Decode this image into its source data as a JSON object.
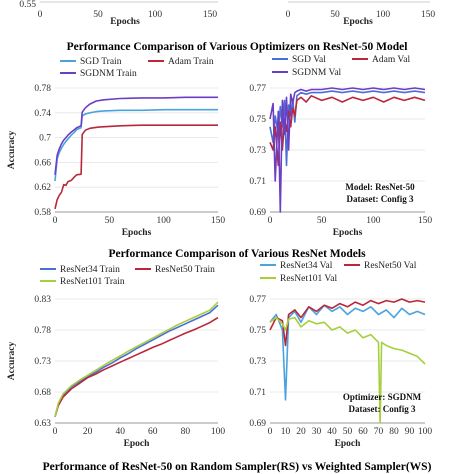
{
  "sections": {
    "s1": "Performance Comparison of Various Optimizers on ResNet-50 Model",
    "s2": "Performance Comparison of Various ResNet Models",
    "s3": "Performance of ResNet-50 on Random Sampler(RS) vs Weighted Sampler(WS)"
  },
  "colors": {
    "blue": "#4a6fd8",
    "red": "#b8283c",
    "purple": "#6b3fc4",
    "green": "#a6cf3f",
    "cyan": "#4aa3df"
  },
  "chart_data": [
    {
      "id": "top_partial",
      "type": "line",
      "x_tick_labels": [
        "0",
        "50",
        "100",
        "150"
      ],
      "y_tick_labels": [
        "0.55"
      ],
      "xlabel": "Epochs",
      "ylim": [
        0.55,
        0.6
      ],
      "xlim": [
        0,
        150
      ],
      "series": []
    },
    {
      "id": "top_partial_right",
      "type": "line",
      "x_tick_labels": [
        "0",
        "50",
        "100",
        "150"
      ],
      "xlabel": "Epochs",
      "xlim": [
        0,
        150
      ],
      "series": []
    },
    {
      "id": "opt_train",
      "type": "line",
      "xlabel": "Epochs",
      "ylabel": "Accuracy",
      "xlim": [
        0,
        150
      ],
      "ylim": [
        0.58,
        0.78
      ],
      "x_ticks": [
        0,
        50,
        100,
        150
      ],
      "y_ticks": [
        0.58,
        0.62,
        0.66,
        0.7,
        0.74,
        0.78
      ],
      "y_tick_labels": [
        "0.58",
        "0.62",
        "0.66",
        "0.7",
        "0.74",
        "0.78"
      ],
      "grid": true,
      "legend": "top",
      "series": [
        {
          "name": "SGD Train",
          "color_key": "cyan",
          "x": [
            0,
            2,
            4,
            6,
            8,
            10,
            12,
            15,
            18,
            20,
            24,
            25,
            28,
            32,
            38,
            45,
            60,
            80,
            100,
            120,
            150
          ],
          "y": [
            0.63,
            0.666,
            0.676,
            0.683,
            0.689,
            0.694,
            0.698,
            0.704,
            0.709,
            0.713,
            0.716,
            0.735,
            0.738,
            0.74,
            0.742,
            0.743,
            0.744,
            0.744,
            0.745,
            0.745,
            0.745
          ]
        },
        {
          "name": "Adam Train",
          "color_key": "red",
          "x": [
            0,
            2,
            4,
            6,
            8,
            10,
            12,
            15,
            18,
            20,
            24,
            25,
            28,
            32,
            40,
            60,
            80,
            100,
            120,
            150
          ],
          "y": [
            0.585,
            0.6,
            0.607,
            0.612,
            0.624,
            0.623,
            0.629,
            0.631,
            0.637,
            0.64,
            0.641,
            0.705,
            0.712,
            0.715,
            0.717,
            0.719,
            0.72,
            0.72,
            0.72,
            0.72
          ]
        },
        {
          "name": "SGDNM Train",
          "color_key": "purple",
          "x": [
            0,
            2,
            4,
            6,
            8,
            10,
            12,
            15,
            18,
            20,
            24,
            25,
            28,
            32,
            38,
            45,
            60,
            80,
            100,
            120,
            150
          ],
          "y": [
            0.64,
            0.672,
            0.682,
            0.69,
            0.696,
            0.7,
            0.704,
            0.709,
            0.713,
            0.716,
            0.719,
            0.741,
            0.748,
            0.754,
            0.759,
            0.761,
            0.763,
            0.764,
            0.764,
            0.765,
            0.765
          ]
        }
      ]
    },
    {
      "id": "opt_val",
      "type": "line",
      "xlabel": "Epochs",
      "ylabel": "",
      "xlim": [
        0,
        150
      ],
      "ylim": [
        0.69,
        0.77
      ],
      "x_ticks": [
        0,
        50,
        100,
        150
      ],
      "y_ticks": [
        0.69,
        0.71,
        0.73,
        0.75,
        0.77
      ],
      "y_tick_labels": [
        "0.69",
        "0.71",
        "0.73",
        "0.75",
        "0.77"
      ],
      "grid": true,
      "legend": "top",
      "annotations": [
        "Model: ResNet-50",
        "Dataset: Config 3"
      ],
      "series": [
        {
          "name": "SGD Val",
          "color_key": "blue",
          "x": [
            0,
            3,
            5,
            8,
            10,
            12,
            14,
            16,
            18,
            20,
            22,
            24,
            26,
            30,
            35,
            40,
            50,
            60,
            70,
            80,
            90,
            100,
            110,
            120,
            130,
            140,
            150
          ],
          "y": [
            0.745,
            0.735,
            0.752,
            0.74,
            0.758,
            0.745,
            0.762,
            0.72,
            0.759,
            0.752,
            0.763,
            0.748,
            0.765,
            0.767,
            0.766,
            0.767,
            0.767,
            0.768,
            0.767,
            0.768,
            0.767,
            0.768,
            0.767,
            0.768,
            0.767,
            0.768,
            0.767
          ]
        },
        {
          "name": "Adam Val",
          "color_key": "red",
          "x": [
            0,
            3,
            5,
            8,
            10,
            12,
            14,
            16,
            18,
            20,
            22,
            24,
            26,
            30,
            35,
            40,
            50,
            60,
            70,
            80,
            90,
            100,
            110,
            120,
            130,
            140,
            150
          ],
          "y": [
            0.735,
            0.73,
            0.745,
            0.72,
            0.748,
            0.73,
            0.75,
            0.742,
            0.755,
            0.745,
            0.757,
            0.752,
            0.762,
            0.764,
            0.761,
            0.765,
            0.762,
            0.764,
            0.761,
            0.764,
            0.762,
            0.764,
            0.761,
            0.764,
            0.762,
            0.764,
            0.762
          ]
        },
        {
          "name": "SGDNM Val",
          "color_key": "purple",
          "x": [
            0,
            3,
            5,
            8,
            10,
            12,
            14,
            16,
            18,
            20,
            22,
            24,
            26,
            30,
            35,
            40,
            50,
            60,
            70,
            80,
            90,
            100,
            110,
            120,
            130,
            140,
            150
          ],
          "y": [
            0.75,
            0.76,
            0.71,
            0.755,
            0.69,
            0.762,
            0.74,
            0.764,
            0.73,
            0.766,
            0.76,
            0.767,
            0.768,
            0.769,
            0.768,
            0.769,
            0.769,
            0.77,
            0.769,
            0.77,
            0.769,
            0.77,
            0.769,
            0.77,
            0.769,
            0.77,
            0.769
          ]
        }
      ]
    },
    {
      "id": "resnet_train",
      "type": "line",
      "xlabel": "Epoch",
      "ylabel": "Accuracy",
      "xlim": [
        0,
        100
      ],
      "ylim": [
        0.63,
        0.83
      ],
      "x_ticks": [
        0,
        20,
        40,
        60,
        80,
        100
      ],
      "y_ticks": [
        0.63,
        0.68,
        0.73,
        0.78,
        0.83
      ],
      "y_tick_labels": [
        "0.63",
        "0.68",
        "0.73",
        "0.78",
        "0.83"
      ],
      "grid": true,
      "legend": "top",
      "series": [
        {
          "name": "ResNet34 Train",
          "color_key": "blue",
          "x": [
            0,
            2,
            5,
            10,
            15,
            20,
            25,
            30,
            35,
            40,
            45,
            50,
            55,
            60,
            65,
            70,
            75,
            80,
            85,
            90,
            95,
            100
          ],
          "y": [
            0.64,
            0.66,
            0.675,
            0.688,
            0.697,
            0.705,
            0.712,
            0.72,
            0.727,
            0.735,
            0.742,
            0.75,
            0.757,
            0.764,
            0.771,
            0.778,
            0.784,
            0.79,
            0.796,
            0.802,
            0.808,
            0.82
          ]
        },
        {
          "name": "ResNet50 Train",
          "color_key": "red",
          "x": [
            0,
            2,
            5,
            10,
            15,
            20,
            25,
            30,
            35,
            40,
            45,
            50,
            55,
            60,
            65,
            70,
            75,
            80,
            85,
            90,
            95,
            100
          ],
          "y": [
            0.64,
            0.658,
            0.672,
            0.685,
            0.694,
            0.703,
            0.709,
            0.716,
            0.722,
            0.728,
            0.734,
            0.74,
            0.746,
            0.752,
            0.757,
            0.763,
            0.769,
            0.775,
            0.78,
            0.786,
            0.792,
            0.8
          ]
        },
        {
          "name": "ResNet101 Train",
          "color_key": "green",
          "x": [
            0,
            2,
            5,
            10,
            15,
            20,
            25,
            30,
            35,
            40,
            45,
            50,
            55,
            60,
            65,
            70,
            75,
            80,
            85,
            90,
            95,
            100
          ],
          "y": [
            0.64,
            0.662,
            0.677,
            0.69,
            0.699,
            0.707,
            0.715,
            0.723,
            0.731,
            0.738,
            0.746,
            0.753,
            0.76,
            0.767,
            0.774,
            0.781,
            0.788,
            0.794,
            0.8,
            0.806,
            0.812,
            0.825
          ]
        }
      ]
    },
    {
      "id": "resnet_val",
      "type": "line",
      "xlabel": "Epoch",
      "ylabel": "",
      "xlim": [
        0,
        100
      ],
      "ylim": [
        0.69,
        0.77
      ],
      "x_ticks": [
        0,
        10,
        20,
        30,
        40,
        50,
        60,
        70,
        80,
        90,
        100
      ],
      "y_ticks": [
        0.69,
        0.71,
        0.73,
        0.75,
        0.77
      ],
      "y_tick_labels": [
        "0.69",
        "0.71",
        "0.73",
        "0.75",
        "0.77"
      ],
      "grid": true,
      "legend": "top",
      "annotations": [
        "Optimizer: SGDNM",
        "Dataset: Config 3"
      ],
      "series": [
        {
          "name": "ResNet34 Val",
          "color_key": "cyan",
          "x": [
            0,
            4,
            8,
            10,
            12,
            16,
            20,
            25,
            30,
            35,
            40,
            45,
            50,
            55,
            60,
            65,
            70,
            75,
            80,
            85,
            90,
            95,
            100
          ],
          "y": [
            0.755,
            0.76,
            0.75,
            0.705,
            0.758,
            0.762,
            0.755,
            0.765,
            0.76,
            0.766,
            0.762,
            0.765,
            0.76,
            0.764,
            0.762,
            0.765,
            0.76,
            0.763,
            0.758,
            0.764,
            0.76,
            0.762,
            0.76
          ]
        },
        {
          "name": "ResNet50 Val",
          "color_key": "red",
          "x": [
            0,
            4,
            8,
            10,
            12,
            16,
            20,
            25,
            30,
            35,
            40,
            45,
            50,
            55,
            60,
            65,
            70,
            75,
            80,
            85,
            90,
            95,
            100
          ],
          "y": [
            0.75,
            0.758,
            0.756,
            0.74,
            0.76,
            0.763,
            0.758,
            0.765,
            0.762,
            0.766,
            0.764,
            0.767,
            0.765,
            0.768,
            0.766,
            0.769,
            0.767,
            0.769,
            0.768,
            0.77,
            0.768,
            0.769,
            0.768
          ]
        },
        {
          "name": "ResNet101 Val",
          "color_key": "green",
          "x": [
            0,
            4,
            8,
            10,
            12,
            16,
            20,
            25,
            30,
            35,
            40,
            45,
            50,
            55,
            60,
            65,
            70,
            71,
            72,
            75,
            80,
            85,
            90,
            95,
            100
          ],
          "y": [
            0.755,
            0.758,
            0.754,
            0.75,
            0.757,
            0.758,
            0.752,
            0.756,
            0.754,
            0.755,
            0.75,
            0.752,
            0.748,
            0.75,
            0.745,
            0.747,
            0.742,
            0.69,
            0.742,
            0.74,
            0.738,
            0.737,
            0.735,
            0.733,
            0.728
          ]
        }
      ]
    }
  ]
}
